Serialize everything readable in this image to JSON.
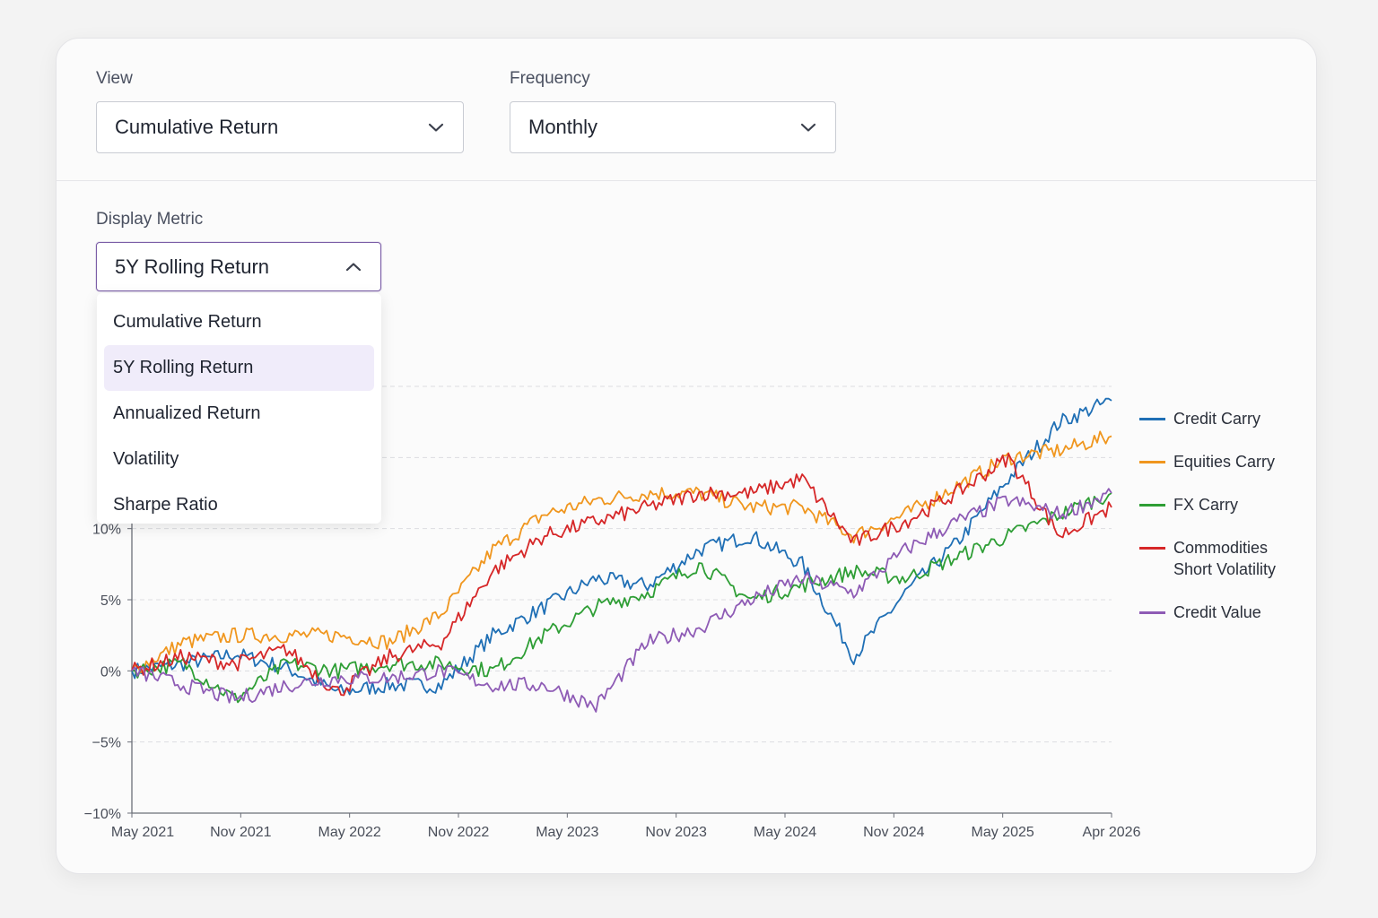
{
  "controls": {
    "view": {
      "label": "View",
      "value": "Cumulative Return"
    },
    "frequency": {
      "label": "Frequency",
      "value": "Monthly"
    },
    "display_metric": {
      "label": "Display Metric",
      "value": "5Y Rolling Return",
      "open": true,
      "options": [
        "Cumulative Return",
        "5Y Rolling Return",
        "Annualized Return",
        "Volatility",
        "Sharpe Ratio"
      ],
      "selected_index": 1
    }
  },
  "icons": {
    "view_chevron": "chevron-down-icon",
    "frequency_chevron": "chevron-down-icon",
    "metric_chevron": "chevron-up-icon"
  },
  "colors": {
    "accent": "#7b5ea7",
    "selected_option_bg": "#f0ecfa"
  },
  "chart_data": {
    "type": "line",
    "title": "",
    "xlabel": "",
    "ylabel": "",
    "x_tick_labels": [
      "May 2021",
      "Nov 2021",
      "May 2022",
      "Nov 2022",
      "May 2023",
      "Nov 2023",
      "May 2024",
      "Nov 2024",
      "May 2025",
      "Apr 2026"
    ],
    "y_tick_labels": [
      "−10%",
      "−5%",
      "0%",
      "5%",
      "10%"
    ],
    "ylim": [
      -10,
      20
    ],
    "y_unit": "%",
    "grid": "horizontal dashed",
    "legend_position": "right",
    "x": [
      "2021-05",
      "2021-08",
      "2021-11",
      "2022-02",
      "2022-05",
      "2022-08",
      "2022-11",
      "2023-02",
      "2023-05",
      "2023-08",
      "2023-11",
      "2024-02",
      "2024-05",
      "2024-08",
      "2024-11",
      "2025-02",
      "2025-05",
      "2025-08",
      "2025-11",
      "2026-04"
    ],
    "series": [
      {
        "name": "Credit Carry",
        "color": "#1f6fb5",
        "values": [
          0,
          0.5,
          1.2,
          0.2,
          -1.5,
          -1.0,
          -1.0,
          2.5,
          4.5,
          6.5,
          6.0,
          8.5,
          9.5,
          7.5,
          1.0,
          5.5,
          9.0,
          13.5,
          17.5,
          19.0
        ]
      },
      {
        "name": "Equities Carry",
        "color": "#f0961e",
        "values": [
          0,
          2.0,
          2.5,
          2.5,
          2.5,
          2.0,
          4.0,
          8.5,
          11.0,
          12.0,
          12.5,
          12.5,
          11.5,
          11.5,
          9.5,
          11.0,
          13.0,
          15.0,
          15.5,
          16.5
        ]
      },
      {
        "name": "FX Carry",
        "color": "#2e9e35",
        "values": [
          0,
          0.5,
          -2.0,
          0.5,
          0.0,
          0.5,
          0.5,
          0.0,
          2.5,
          4.5,
          5.5,
          7.5,
          5.0,
          6.0,
          7.0,
          6.5,
          8.0,
          9.5,
          11.0,
          12.5
        ]
      },
      {
        "name": "Commodities Short Volatility",
        "color": "#d62728",
        "values": [
          0,
          1.0,
          0.5,
          1.5,
          -1.5,
          1.0,
          2.0,
          7.0,
          9.5,
          10.5,
          11.5,
          12.5,
          12.5,
          13.5,
          9.0,
          10.5,
          12.5,
          15.0,
          9.5,
          11.5
        ]
      },
      {
        "name": "Credit Value",
        "color": "#8e5bb5",
        "values": [
          0,
          -1.0,
          -2.0,
          -1.0,
          -0.5,
          -0.5,
          0.0,
          -1.0,
          -1.0,
          -2.5,
          2.0,
          3.0,
          5.0,
          6.5,
          5.5,
          8.5,
          10.5,
          12.0,
          11.0,
          12.5
        ]
      }
    ]
  }
}
